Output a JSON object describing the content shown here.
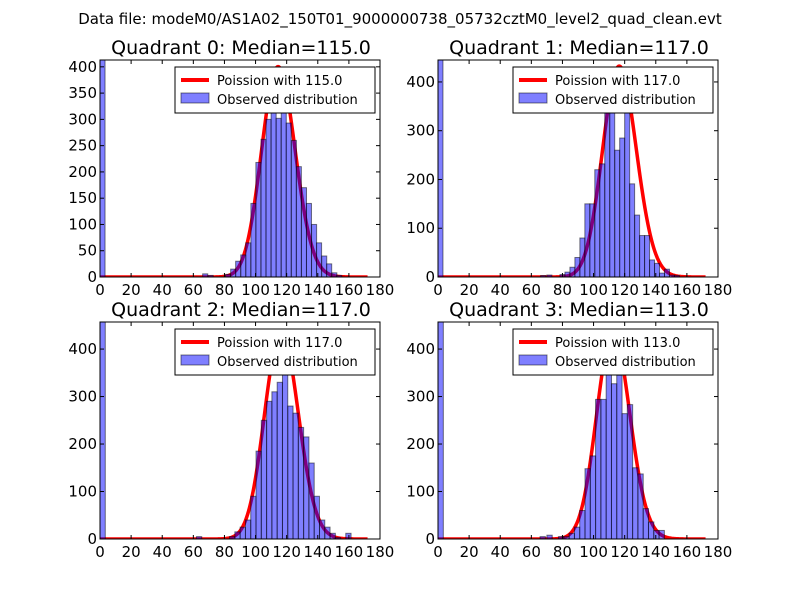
{
  "figure": {
    "suptitle": "Data file: modeM0/AS1A02_150T01_9000000738_05732cztM0_level2_quad_clean.evt"
  },
  "chart_data": [
    {
      "type": "bar",
      "title": "Quadrant 0: Median=115.0",
      "legend": [
        "Poission with 115.0",
        "Observed distribution"
      ],
      "legend_position": "top-right",
      "lambda": 115.0,
      "curve_peak": 400,
      "xlim": [
        0,
        180
      ],
      "ylim": [
        0,
        413
      ],
      "xticks": [
        "0",
        "20",
        "40",
        "60",
        "80",
        "100",
        "120",
        "140",
        "160",
        "180"
      ],
      "yticks": [
        "0",
        "50",
        "100",
        "150",
        "200",
        "250",
        "300",
        "350",
        "400"
      ],
      "bin_width": 3.25,
      "bins": [
        [
          0,
          500
        ],
        [
          66,
          6
        ],
        [
          69.5,
          3
        ],
        [
          80.7,
          5
        ],
        [
          84,
          15
        ],
        [
          87.2,
          30
        ],
        [
          90.5,
          42
        ],
        [
          93.7,
          65
        ],
        [
          97,
          140
        ],
        [
          100.2,
          218
        ],
        [
          103.5,
          262
        ],
        [
          106.7,
          300
        ],
        [
          110,
          318
        ],
        [
          113.2,
          302
        ],
        [
          116.5,
          394
        ],
        [
          119.7,
          293
        ],
        [
          123,
          260
        ],
        [
          126.2,
          210
        ],
        [
          129.5,
          170
        ],
        [
          132.7,
          140
        ],
        [
          136,
          100
        ],
        [
          139.2,
          65
        ],
        [
          142.5,
          40
        ],
        [
          145.7,
          25
        ],
        [
          149,
          8
        ],
        [
          152.2,
          3
        ]
      ]
    },
    {
      "type": "bar",
      "title": "Quadrant 1: Median=117.0",
      "legend": [
        "Poission with 117.0",
        "Observed distribution"
      ],
      "legend_position": "top-right",
      "lambda": 117.0,
      "curve_peak": 432,
      "xlim": [
        0,
        180
      ],
      "ylim": [
        0,
        445
      ],
      "xticks": [
        "0",
        "20",
        "40",
        "60",
        "80",
        "100",
        "120",
        "140",
        "160",
        "180"
      ],
      "yticks": [
        "0",
        "100",
        "200",
        "300",
        "400"
      ],
      "bin_width": 3.2,
      "bins": [
        [
          0,
          500
        ],
        [
          66,
          3
        ],
        [
          70,
          4
        ],
        [
          78.4,
          5
        ],
        [
          81.6,
          10
        ],
        [
          84.8,
          20
        ],
        [
          88,
          40
        ],
        [
          91.2,
          80
        ],
        [
          94.4,
          150
        ],
        [
          97.6,
          150
        ],
        [
          100.8,
          220
        ],
        [
          104,
          232
        ],
        [
          107.2,
          425
        ],
        [
          110.4,
          343
        ],
        [
          113.6,
          260
        ],
        [
          116.8,
          285
        ],
        [
          120,
          343
        ],
        [
          123.2,
          191
        ],
        [
          126.4,
          127
        ],
        [
          129.6,
          85
        ],
        [
          132.8,
          85
        ],
        [
          136,
          35
        ],
        [
          139.2,
          28
        ],
        [
          142.4,
          8
        ],
        [
          145.6,
          16
        ],
        [
          148.8,
          4
        ],
        [
          152,
          3
        ]
      ]
    },
    {
      "type": "bar",
      "title": "Quadrant 2: Median=117.0",
      "legend": [
        "Poission with 117.0",
        "Observed distribution"
      ],
      "legend_position": "top-right",
      "lambda": 117.0,
      "curve_peak": 437,
      "xlim": [
        0,
        180
      ],
      "ylim": [
        0,
        457
      ],
      "xticks": [
        "0",
        "20",
        "40",
        "60",
        "80",
        "100",
        "120",
        "140",
        "160",
        "180"
      ],
      "yticks": [
        "0",
        "100",
        "200",
        "300",
        "400"
      ],
      "bin_width": 3.4,
      "bins": [
        [
          0,
          500
        ],
        [
          62,
          5
        ],
        [
          83.3,
          5
        ],
        [
          86.7,
          15
        ],
        [
          90.1,
          25
        ],
        [
          93.5,
          40
        ],
        [
          96.9,
          90
        ],
        [
          100.3,
          185
        ],
        [
          103.7,
          250
        ],
        [
          107.1,
          290
        ],
        [
          110.5,
          310
        ],
        [
          113.9,
          330
        ],
        [
          117.3,
          435
        ],
        [
          120.7,
          280
        ],
        [
          124.1,
          265
        ],
        [
          127.5,
          235
        ],
        [
          130.9,
          215
        ],
        [
          134.3,
          160
        ],
        [
          137.7,
          90
        ],
        [
          141.1,
          40
        ],
        [
          144.5,
          25
        ],
        [
          147.9,
          12
        ],
        [
          151.3,
          3
        ],
        [
          158,
          12
        ]
      ]
    },
    {
      "type": "bar",
      "title": "Quadrant 3: Median=113.0",
      "legend": [
        "Poission with 113.0",
        "Observed distribution"
      ],
      "legend_position": "top-right",
      "lambda": 113.0,
      "curve_peak": 435,
      "xlim": [
        0,
        180
      ],
      "ylim": [
        0,
        457
      ],
      "xticks": [
        "0",
        "20",
        "40",
        "60",
        "80",
        "100",
        "120",
        "140",
        "160",
        "180"
      ],
      "yticks": [
        "0",
        "100",
        "200",
        "300",
        "400"
      ],
      "bin_width": 3.43,
      "bins": [
        [
          0,
          500
        ],
        [
          65.6,
          5
        ],
        [
          70,
          8
        ],
        [
          77.5,
          5
        ],
        [
          80.9,
          5
        ],
        [
          84.3,
          12
        ],
        [
          87.7,
          25
        ],
        [
          91.1,
          60
        ],
        [
          94.5,
          148
        ],
        [
          97.9,
          175
        ],
        [
          101.3,
          294
        ],
        [
          104.7,
          294
        ],
        [
          108.1,
          435
        ],
        [
          111.5,
          327
        ],
        [
          114.9,
          345
        ],
        [
          118.3,
          264
        ],
        [
          121.7,
          283
        ],
        [
          125.1,
          150
        ],
        [
          128.5,
          137
        ],
        [
          131.9,
          64
        ],
        [
          135.3,
          36
        ],
        [
          138.7,
          18
        ],
        [
          142.1,
          18
        ]
      ]
    }
  ]
}
